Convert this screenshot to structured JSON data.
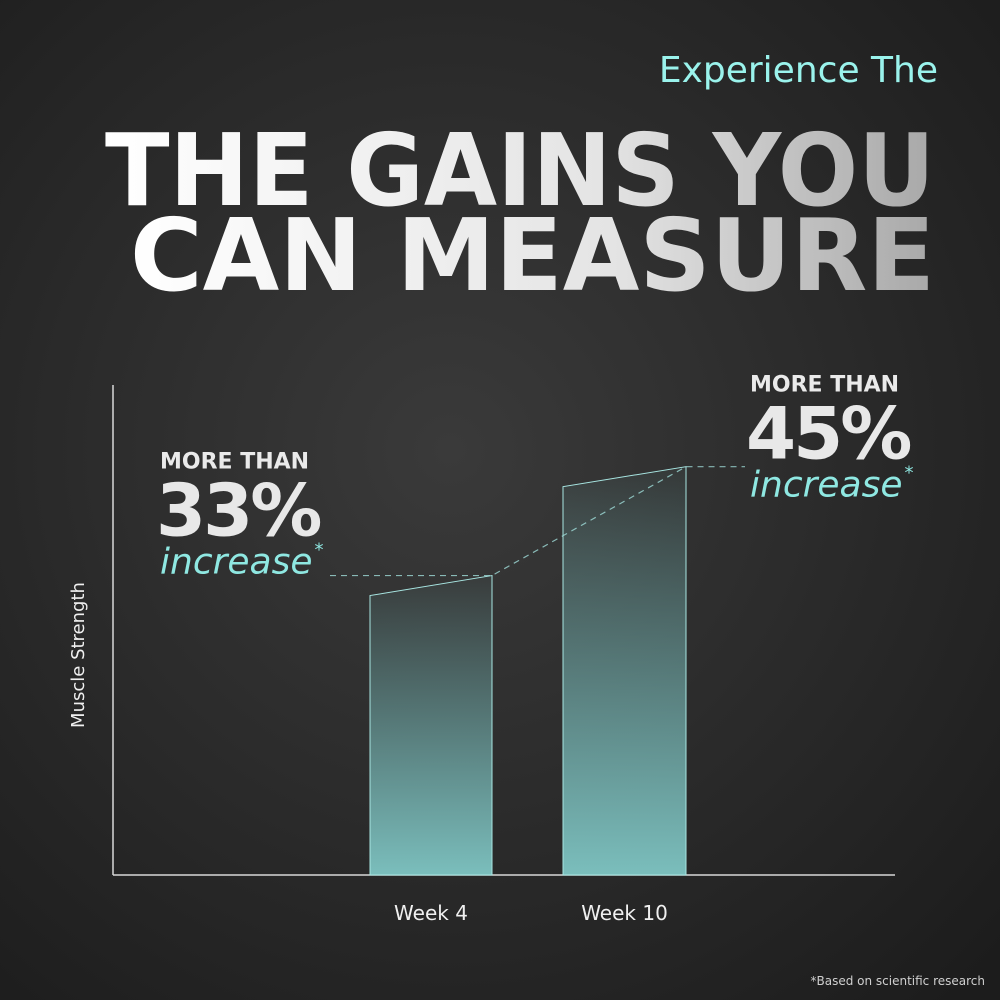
{
  "chart_data": {
    "type": "bar",
    "supertitle": "Experience The",
    "title_lines": [
      "THE GAINS YOU",
      "CAN MEASURE"
    ],
    "y_label": "Muscle Strength",
    "categories": [
      "Week 4",
      "Week 10"
    ],
    "values": [
      33,
      45
    ],
    "value_labels": [
      "33%",
      "45%"
    ],
    "label_prefix": "MORE THAN",
    "label_suffix": "increase",
    "footnote_mark": "*",
    "footnote": "*Based on scientific research",
    "color": "#7fc6c4",
    "ylim": [
      0,
      54
    ]
  }
}
